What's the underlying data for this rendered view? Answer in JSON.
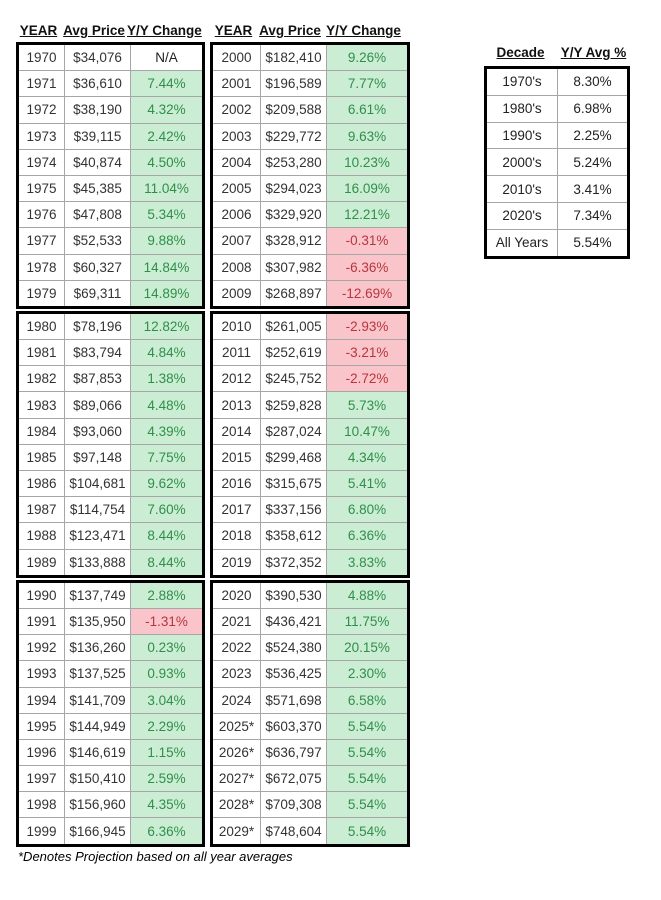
{
  "palette": {
    "green_bg": "#CBEDD4",
    "green_text": "#2F8F49",
    "red_bg": "#F9C5CA",
    "red_text": "#B8353F",
    "grid_line": "#A6A6A6",
    "border": "#000000"
  },
  "chart_data": {
    "type": "table",
    "left_table": {
      "headers": [
        "YEAR",
        "Avg Price",
        "Y/Y Change"
      ],
      "decade_blocks": [
        [
          [
            "1970",
            "$34,076",
            "N/A",
            "na"
          ],
          [
            "1971",
            "$36,610",
            "7.44%",
            "pos"
          ],
          [
            "1972",
            "$38,190",
            "4.32%",
            "pos"
          ],
          [
            "1973",
            "$39,115",
            "2.42%",
            "pos"
          ],
          [
            "1974",
            "$40,874",
            "4.50%",
            "pos"
          ],
          [
            "1975",
            "$45,385",
            "11.04%",
            "pos"
          ],
          [
            "1976",
            "$47,808",
            "5.34%",
            "pos"
          ],
          [
            "1977",
            "$52,533",
            "9.88%",
            "pos"
          ],
          [
            "1978",
            "$60,327",
            "14.84%",
            "pos"
          ],
          [
            "1979",
            "$69,311",
            "14.89%",
            "pos"
          ]
        ],
        [
          [
            "1980",
            "$78,196",
            "12.82%",
            "pos"
          ],
          [
            "1981",
            "$83,794",
            "4.84%",
            "pos"
          ],
          [
            "1982",
            "$87,853",
            "1.38%",
            "pos"
          ],
          [
            "1983",
            "$89,066",
            "4.48%",
            "pos"
          ],
          [
            "1984",
            "$93,060",
            "4.39%",
            "pos"
          ],
          [
            "1985",
            "$97,148",
            "7.75%",
            "pos"
          ],
          [
            "1986",
            "$104,681",
            "9.62%",
            "pos"
          ],
          [
            "1987",
            "$114,754",
            "7.60%",
            "pos"
          ],
          [
            "1988",
            "$123,471",
            "8.44%",
            "pos"
          ],
          [
            "1989",
            "$133,888",
            "8.44%",
            "pos"
          ]
        ],
        [
          [
            "1990",
            "$137,749",
            "2.88%",
            "pos"
          ],
          [
            "1991",
            "$135,950",
            "-1.31%",
            "neg"
          ],
          [
            "1992",
            "$136,260",
            "0.23%",
            "pos"
          ],
          [
            "1993",
            "$137,525",
            "0.93%",
            "pos"
          ],
          [
            "1994",
            "$141,709",
            "3.04%",
            "pos"
          ],
          [
            "1995",
            "$144,949",
            "2.29%",
            "pos"
          ],
          [
            "1996",
            "$146,619",
            "1.15%",
            "pos"
          ],
          [
            "1997",
            "$150,410",
            "2.59%",
            "pos"
          ],
          [
            "1998",
            "$156,960",
            "4.35%",
            "pos"
          ],
          [
            "1999",
            "$166,945",
            "6.36%",
            "pos"
          ]
        ]
      ]
    },
    "right_table": {
      "headers": [
        "YEAR",
        "Avg Price",
        "Y/Y Change"
      ],
      "decade_blocks": [
        [
          [
            "2000",
            "$182,410",
            "9.26%",
            "pos"
          ],
          [
            "2001",
            "$196,589",
            "7.77%",
            "pos"
          ],
          [
            "2002",
            "$209,588",
            "6.61%",
            "pos"
          ],
          [
            "2003",
            "$229,772",
            "9.63%",
            "pos"
          ],
          [
            "2004",
            "$253,280",
            "10.23%",
            "pos"
          ],
          [
            "2005",
            "$294,023",
            "16.09%",
            "pos"
          ],
          [
            "2006",
            "$329,920",
            "12.21%",
            "pos"
          ],
          [
            "2007",
            "$328,912",
            "-0.31%",
            "neg"
          ],
          [
            "2008",
            "$307,982",
            "-6.36%",
            "neg"
          ],
          [
            "2009",
            "$268,897",
            "-12.69%",
            "neg"
          ]
        ],
        [
          [
            "2010",
            "$261,005",
            "-2.93%",
            "neg"
          ],
          [
            "2011",
            "$252,619",
            "-3.21%",
            "neg"
          ],
          [
            "2012",
            "$245,752",
            "-2.72%",
            "neg"
          ],
          [
            "2013",
            "$259,828",
            "5.73%",
            "pos"
          ],
          [
            "2014",
            "$287,024",
            "10.47%",
            "pos"
          ],
          [
            "2015",
            "$299,468",
            "4.34%",
            "pos"
          ],
          [
            "2016",
            "$315,675",
            "5.41%",
            "pos"
          ],
          [
            "2017",
            "$337,156",
            "6.80%",
            "pos"
          ],
          [
            "2018",
            "$358,612",
            "6.36%",
            "pos"
          ],
          [
            "2019",
            "$372,352",
            "3.83%",
            "pos"
          ]
        ],
        [
          [
            "2020",
            "$390,530",
            "4.88%",
            "pos"
          ],
          [
            "2021",
            "$436,421",
            "11.75%",
            "pos"
          ],
          [
            "2022",
            "$524,380",
            "20.15%",
            "pos"
          ],
          [
            "2023",
            "$536,425",
            "2.30%",
            "pos"
          ],
          [
            "2024",
            "$571,698",
            "6.58%",
            "pos"
          ],
          [
            "2025*",
            "$603,370",
            "5.54%",
            "pos"
          ],
          [
            "2026*",
            "$636,797",
            "5.54%",
            "pos"
          ],
          [
            "2027*",
            "$672,075",
            "5.54%",
            "pos"
          ],
          [
            "2028*",
            "$709,308",
            "5.54%",
            "pos"
          ],
          [
            "2029*",
            "$748,604",
            "5.54%",
            "pos"
          ]
        ]
      ]
    },
    "decade_table": {
      "headers": [
        "Decade",
        "Y/Y Avg %"
      ],
      "rows": [
        [
          "1970's",
          "8.30%"
        ],
        [
          "1980's",
          "6.98%"
        ],
        [
          "1990's",
          "2.25%"
        ],
        [
          "2000's",
          "5.24%"
        ],
        [
          "2010's",
          "3.41%"
        ],
        [
          "2020's",
          "7.34%"
        ],
        [
          "All Years",
          "5.54%"
        ]
      ]
    },
    "footnote": "*Denotes Projection based on all year averages"
  }
}
